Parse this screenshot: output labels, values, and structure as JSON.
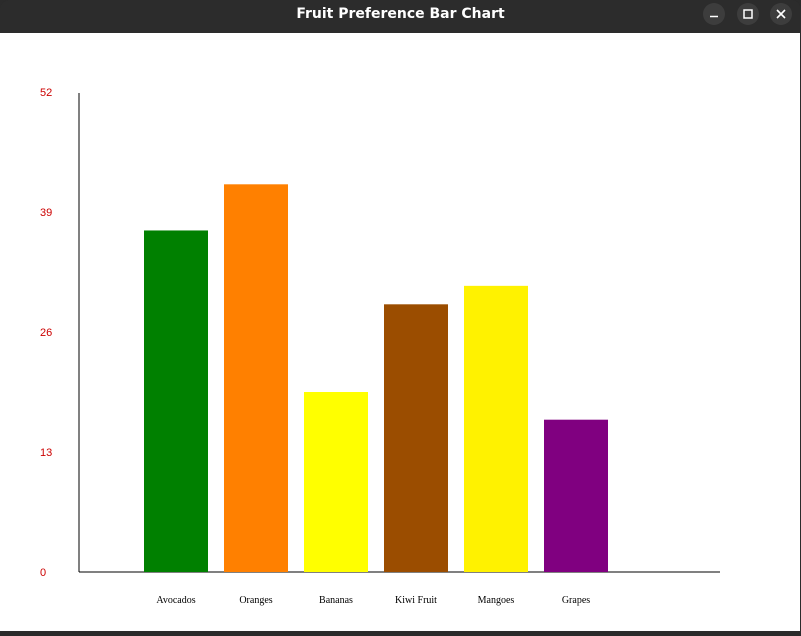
{
  "window": {
    "title": "Fruit Preference Bar Chart",
    "controls": [
      "minimize",
      "maximize",
      "close"
    ]
  },
  "chart_data": {
    "type": "bar",
    "title": "",
    "xlabel": "",
    "ylabel": "",
    "categories": [
      "Avocados",
      "Oranges",
      "Bananas",
      "Kiwi Fruit",
      "Mangoes",
      "Grapes"
    ],
    "values": [
      37,
      42,
      19.5,
      29,
      31,
      16.5
    ],
    "colors": [
      "#008000",
      "#ff8000",
      "#ffff00",
      "#9b4d00",
      "#fff200",
      "#800080"
    ],
    "ylim": [
      0,
      52
    ],
    "yticks": [
      "0",
      "13",
      "26",
      "39",
      "52"
    ],
    "ytick_values": [
      0,
      13,
      26,
      39,
      52
    ],
    "ytick_color": "#cc0000",
    "grid": false,
    "legend": "none"
  }
}
